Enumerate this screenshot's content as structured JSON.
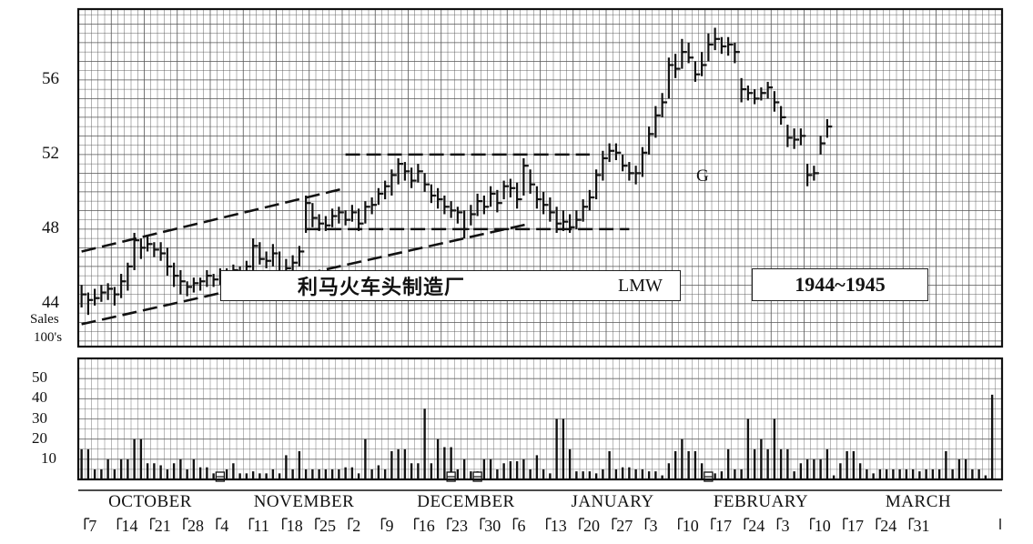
{
  "chart_data": {
    "type": "bar",
    "title": "利马火车头制造厂",
    "ticker": "LMW",
    "period": "1944~1945",
    "annotation": "G",
    "price_axis": {
      "ticks": [
        "44",
        "48",
        "52",
        "56"
      ],
      "ylim": [
        41.7,
        59.8
      ]
    },
    "volume_axis": {
      "label_line1": "Sales",
      "label_line2": "100's",
      "ticks": [
        "10",
        "20",
        "30",
        "40",
        "50"
      ],
      "ylim": [
        0,
        60
      ]
    },
    "months": [
      "OCTOBER",
      "NOVEMBER",
      "DECEMBER",
      "JANUARY",
      "FEBRUARY",
      "MARCH"
    ],
    "week_labels": [
      "7",
      "14",
      "21",
      "28",
      "4",
      "11",
      "18",
      "25",
      "2",
      "9",
      "16",
      "23",
      "30",
      "6",
      "13",
      "20",
      "27",
      "3",
      "10",
      "17",
      "24",
      "3",
      "10",
      "17",
      "24",
      "31"
    ],
    "holidays": [
      21,
      56,
      60,
      95
    ],
    "trendlines": [
      {
        "from": [
          0,
          46.8
        ],
        "to": [
          40,
          50.2
        ]
      },
      {
        "from": [
          0,
          42.9
        ],
        "to": [
          68,
          48.3
        ]
      },
      {
        "from": [
          40,
          52.0
        ],
        "to": [
          77,
          52.0
        ]
      },
      {
        "from": [
          34,
          48.0
        ],
        "to": [
          83,
          48.0
        ]
      }
    ],
    "series": [
      {
        "name": "Price",
        "ohlc": [
          [
            0,
            45.0,
            43.8,
            44.5
          ],
          [
            1,
            44.6,
            43.4,
            44.2
          ],
          [
            2,
            44.8,
            43.9,
            44.3
          ],
          [
            3,
            45.0,
            44.1,
            44.6
          ],
          [
            4,
            45.1,
            44.2,
            44.8
          ],
          [
            5,
            44.9,
            43.9,
            44.5
          ],
          [
            6,
            45.6,
            44.3,
            45.2
          ],
          [
            7,
            46.2,
            44.7,
            46.0
          ],
          [
            8,
            47.8,
            45.8,
            47.4
          ],
          [
            9,
            47.5,
            46.4,
            47.0
          ],
          [
            10,
            47.6,
            46.8,
            47.2
          ],
          [
            11,
            47.3,
            46.5,
            46.9
          ],
          [
            12,
            47.3,
            46.3,
            46.7
          ],
          [
            13,
            47.0,
            45.5,
            46.0
          ],
          [
            14,
            46.2,
            44.9,
            45.5
          ],
          [
            15,
            45.8,
            44.5,
            45.2
          ],
          [
            16,
            45.2,
            44.4,
            44.9
          ],
          [
            17,
            45.4,
            44.6,
            45.1
          ],
          [
            18,
            45.4,
            44.7,
            45.2
          ],
          [
            19,
            45.8,
            44.9,
            45.5
          ],
          [
            20,
            45.6,
            44.9,
            45.3
          ],
          [
            21,
            45.9,
            45.0,
            45.6
          ],
          [
            22,
            45.9,
            45.2,
            45.7
          ],
          [
            23,
            46.1,
            45.3,
            45.8
          ],
          [
            24,
            46.0,
            45.2,
            45.6
          ],
          [
            25,
            46.3,
            45.4,
            46.0
          ],
          [
            26,
            47.5,
            45.8,
            47.1
          ],
          [
            27,
            47.3,
            46.1,
            46.4
          ],
          [
            28,
            46.8,
            45.9,
            46.3
          ],
          [
            29,
            47.2,
            46.0,
            46.7
          ],
          [
            30,
            46.8,
            45.1,
            45.6
          ],
          [
            31,
            46.4,
            45.4,
            45.9
          ],
          [
            32,
            46.6,
            45.6,
            46.2
          ],
          [
            33,
            47.1,
            46.0,
            46.8
          ],
          [
            34,
            49.8,
            47.8,
            49.4
          ],
          [
            35,
            49.4,
            48.1,
            48.6
          ],
          [
            36,
            48.8,
            47.9,
            48.3
          ],
          [
            37,
            48.7,
            47.9,
            48.2
          ],
          [
            38,
            49.1,
            48.1,
            48.7
          ],
          [
            39,
            49.2,
            48.3,
            48.9
          ],
          [
            40,
            49.0,
            48.2,
            48.5
          ],
          [
            41,
            49.3,
            48.4,
            48.9
          ],
          [
            42,
            49.1,
            47.9,
            48.3
          ],
          [
            43,
            49.5,
            48.3,
            49.2
          ],
          [
            44,
            49.7,
            48.8,
            49.3
          ],
          [
            45,
            50.2,
            49.3,
            49.9
          ],
          [
            46,
            50.6,
            49.6,
            50.3
          ],
          [
            47,
            51.2,
            49.8,
            50.9
          ],
          [
            48,
            51.8,
            50.4,
            51.5
          ],
          [
            49,
            51.6,
            50.6,
            51.1
          ],
          [
            50,
            51.3,
            50.2,
            50.6
          ],
          [
            51,
            51.5,
            50.5,
            51.1
          ],
          [
            52,
            51.0,
            50.0,
            50.4
          ],
          [
            53,
            50.4,
            49.4,
            49.8
          ],
          [
            54,
            50.2,
            49.1,
            49.6
          ],
          [
            55,
            49.8,
            48.8,
            49.2
          ],
          [
            56,
            49.5,
            48.6,
            49.0
          ],
          [
            57,
            49.2,
            48.3,
            48.9
          ],
          [
            58,
            49.0,
            47.5,
            48.0
          ],
          [
            59,
            49.3,
            48.2,
            48.8
          ],
          [
            60,
            49.9,
            48.7,
            49.5
          ],
          [
            61,
            49.8,
            48.8,
            49.2
          ],
          [
            62,
            50.3,
            49.2,
            49.9
          ],
          [
            63,
            50.1,
            48.9,
            49.4
          ],
          [
            64,
            50.6,
            49.6,
            50.3
          ],
          [
            65,
            50.7,
            49.7,
            50.2
          ],
          [
            66,
            50.5,
            49.1,
            49.6
          ],
          [
            67,
            51.8,
            49.8,
            51.4
          ],
          [
            68,
            51.2,
            49.9,
            50.4
          ],
          [
            69,
            50.3,
            49.1,
            49.6
          ],
          [
            70,
            50.0,
            48.8,
            49.3
          ],
          [
            71,
            49.7,
            48.4,
            48.9
          ],
          [
            72,
            49.2,
            47.8,
            48.3
          ],
          [
            73,
            49.0,
            47.9,
            48.4
          ],
          [
            74,
            48.8,
            47.8,
            48.1
          ],
          [
            75,
            49.0,
            48.0,
            48.5
          ],
          [
            76,
            49.6,
            48.4,
            49.2
          ],
          [
            77,
            50.1,
            49.0,
            49.7
          ],
          [
            78,
            51.2,
            49.6,
            50.9
          ],
          [
            79,
            52.2,
            50.6,
            51.8
          ],
          [
            80,
            52.6,
            51.6,
            52.2
          ],
          [
            81,
            52.6,
            51.7,
            52.1
          ],
          [
            82,
            52.0,
            51.1,
            51.4
          ],
          [
            83,
            51.6,
            50.6,
            51.0
          ],
          [
            84,
            51.4,
            50.4,
            51.0
          ],
          [
            85,
            52.4,
            50.8,
            52.1
          ],
          [
            86,
            53.5,
            52.0,
            53.1
          ],
          [
            87,
            54.6,
            52.9,
            54.1
          ],
          [
            88,
            55.3,
            54.0,
            54.8
          ],
          [
            89,
            57.2,
            55.0,
            56.8
          ],
          [
            90,
            57.4,
            56.1,
            56.6
          ],
          [
            91,
            58.2,
            56.6,
            57.5
          ],
          [
            92,
            58.0,
            56.9,
            57.2
          ],
          [
            93,
            57.0,
            55.9,
            56.3
          ],
          [
            94,
            57.5,
            56.2,
            56.8
          ],
          [
            95,
            58.5,
            57.0,
            57.9
          ],
          [
            96,
            58.8,
            57.6,
            58.2
          ],
          [
            97,
            58.3,
            57.4,
            57.8
          ],
          [
            98,
            58.3,
            57.3,
            57.9
          ],
          [
            99,
            58.0,
            56.9,
            57.5
          ],
          [
            100,
            56.1,
            54.8,
            55.5
          ],
          [
            101,
            55.7,
            54.9,
            55.3
          ],
          [
            102,
            55.5,
            54.7,
            55.0
          ],
          [
            103,
            55.6,
            54.9,
            55.3
          ],
          [
            104,
            55.9,
            55.0,
            55.6
          ],
          [
            105,
            55.4,
            54.3,
            54.8
          ],
          [
            106,
            54.6,
            53.6,
            54.0
          ],
          [
            107,
            53.6,
            52.4,
            52.9
          ],
          [
            108,
            53.4,
            52.3,
            52.8
          ],
          [
            109,
            53.4,
            52.5,
            53.0
          ],
          [
            110,
            51.5,
            50.3,
            50.9
          ],
          [
            111,
            51.4,
            50.6,
            51.0
          ],
          [
            112,
            53.0,
            52.0,
            52.6
          ],
          [
            113,
            53.9,
            52.9,
            53.5
          ]
        ]
      },
      {
        "name": "Volume",
        "values": [
          15,
          15,
          5,
          5,
          10,
          5,
          10,
          10,
          20,
          20,
          8,
          8,
          7,
          5,
          8,
          10,
          5,
          10,
          6,
          6,
          3,
          3,
          5,
          8,
          3,
          3,
          4,
          3,
          3,
          5,
          3,
          12,
          5,
          14,
          5,
          5,
          5,
          5,
          5,
          5,
          6,
          6,
          3,
          20,
          5,
          7,
          5,
          14,
          15,
          15,
          8,
          8,
          35,
          8,
          20,
          16,
          16,
          5,
          10,
          4,
          4,
          10,
          10,
          5,
          8,
          9,
          9,
          10,
          5,
          12,
          5,
          3,
          30,
          30,
          15,
          4,
          4,
          4,
          3,
          5,
          14,
          5,
          6,
          6,
          5,
          5,
          4,
          4,
          2,
          8,
          14,
          20,
          14,
          14,
          8,
          3,
          3,
          4,
          15,
          5,
          5,
          30,
          15,
          20,
          15,
          30,
          15,
          15,
          4,
          8,
          10,
          10,
          10,
          15,
          2,
          8,
          14,
          14,
          8,
          5,
          3,
          5,
          5,
          5,
          5,
          5,
          5,
          4,
          5,
          5,
          5,
          14,
          5,
          10,
          10,
          5,
          5,
          2,
          42
        ]
      }
    ]
  }
}
